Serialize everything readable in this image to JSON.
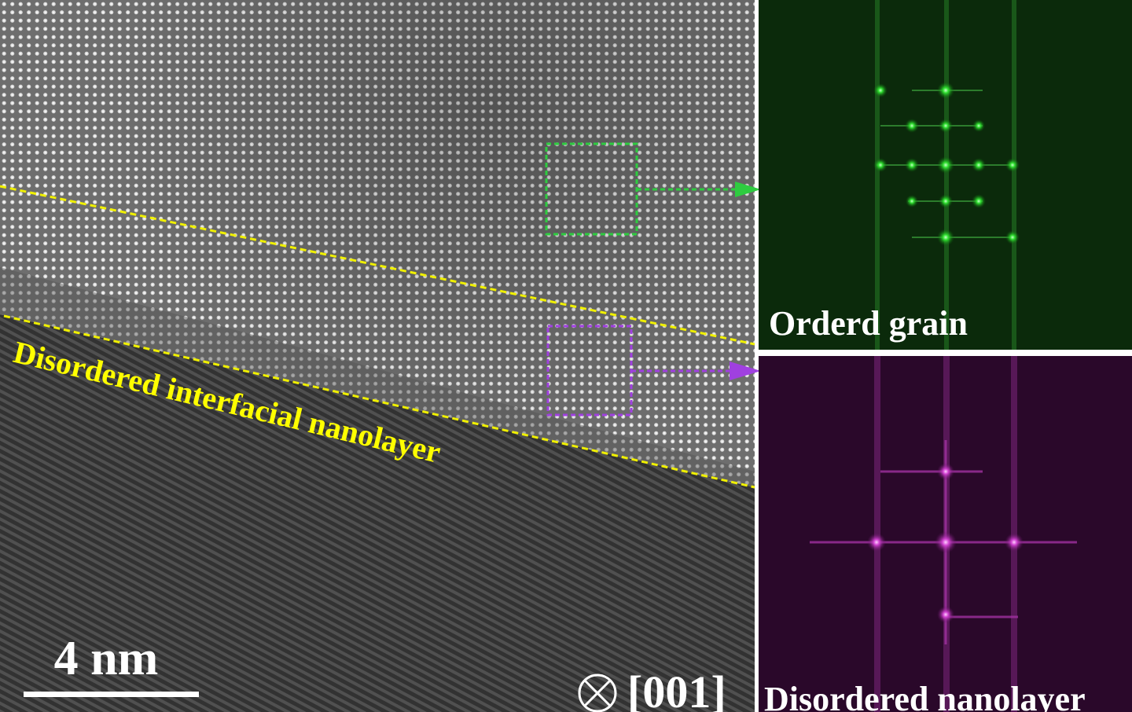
{
  "image": {
    "interface_label": "Disordered interfacial nanolayer",
    "scale_bar": "4 nm",
    "zone_axis": "[001]"
  },
  "insets": [
    {
      "label": "Orderd grain"
    },
    {
      "label": "Disordered nanolayer"
    }
  ]
}
